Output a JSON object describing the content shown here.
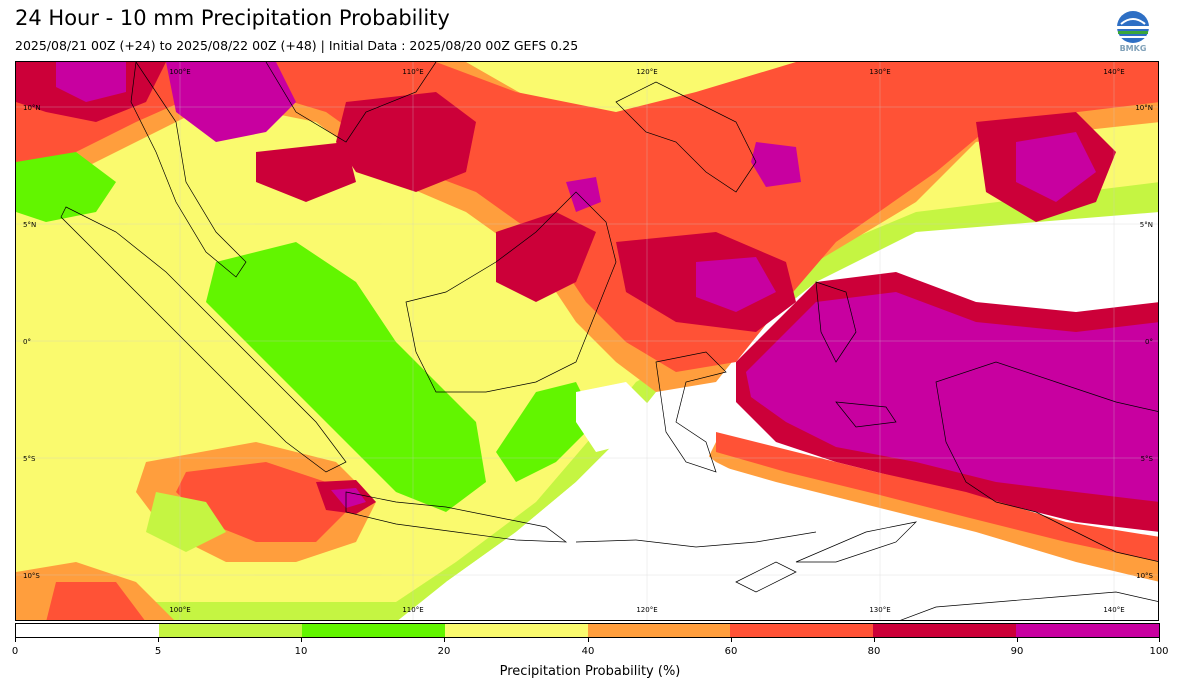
{
  "header": {
    "title": "24 Hour - 10 mm Precipitation Probability",
    "subtitle": "2025/08/21 00Z (+24) to 2025/08/22 00Z (+48) | Initial Data : 2025/08/20 00Z GEFS 0.25"
  },
  "logo": {
    "text": "BMKG",
    "icon": "bmkg-logo"
  },
  "map": {
    "lon_labels_top": [
      "100°E",
      "110°E",
      "120°E",
      "130°E",
      "140°E"
    ],
    "lon_labels_bottom": [
      "100°E",
      "110°E",
      "120°E",
      "130°E",
      "140°E"
    ],
    "lat_labels_left": [
      "10°N",
      "5°N",
      "0°",
      "5°S",
      "10°S"
    ],
    "lat_labels_right": [
      "10°N",
      "5°N",
      "0°",
      "5°S",
      "10°S"
    ]
  },
  "colorbar": {
    "label": "Precipitation Probability (%)",
    "ticks": [
      "0",
      "5",
      "10",
      "20",
      "40",
      "60",
      "80",
      "90",
      "100"
    ],
    "colors": [
      "#ffffff",
      "#c5f542",
      "#62f500",
      "#fafa6e",
      "#ff9e3d",
      "#ff5236",
      "#cc0039",
      "#c800a0"
    ]
  }
}
